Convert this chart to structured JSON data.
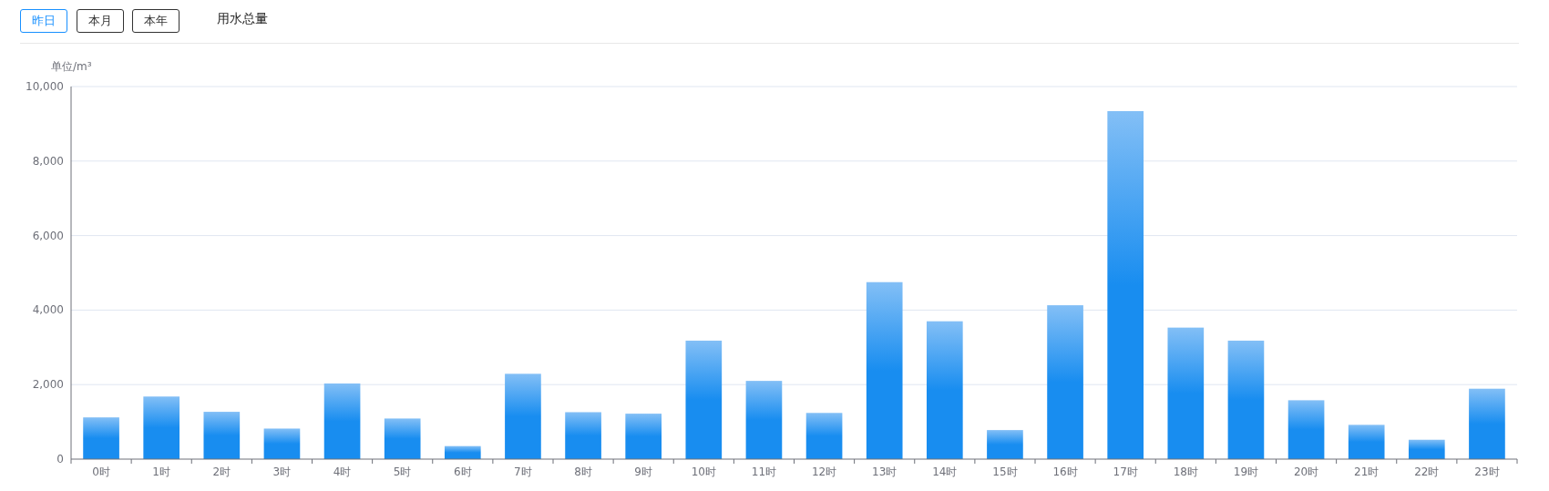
{
  "chart_data": {
    "type": "bar",
    "title": "用水总量",
    "annotations": [
      "昨日",
      "本月",
      "本年"
    ],
    "ylabel": "单位/m³",
    "categories": [
      "0时",
      "1时",
      "2时",
      "3时",
      "4时",
      "5时",
      "6时",
      "7时",
      "8时",
      "9时",
      "10时",
      "11时",
      "12时",
      "13时",
      "14时",
      "15时",
      "16时",
      "17时",
      "18时",
      "19时",
      "20时",
      "21时",
      "22时",
      "23时"
    ],
    "values": [
      1120,
      1680,
      1270,
      820,
      2030,
      1090,
      350,
      2290,
      1260,
      1220,
      3180,
      2100,
      1240,
      4750,
      3700,
      780,
      4130,
      9340,
      3530,
      3180,
      1580,
      920,
      520,
      1890
    ],
    "color": "#188df0",
    "ylim": [
      0,
      10000
    ],
    "yticks": [
      {
        "value": 0,
        "label": "0"
      },
      {
        "value": 2000,
        "label": "2,000"
      },
      {
        "value": 4000,
        "label": "4,000"
      },
      {
        "value": 6000,
        "label": "6,000"
      },
      {
        "value": 8000,
        "label": "8,000"
      },
      {
        "value": 10000,
        "label": "10,000"
      }
    ],
    "grid": "y"
  }
}
